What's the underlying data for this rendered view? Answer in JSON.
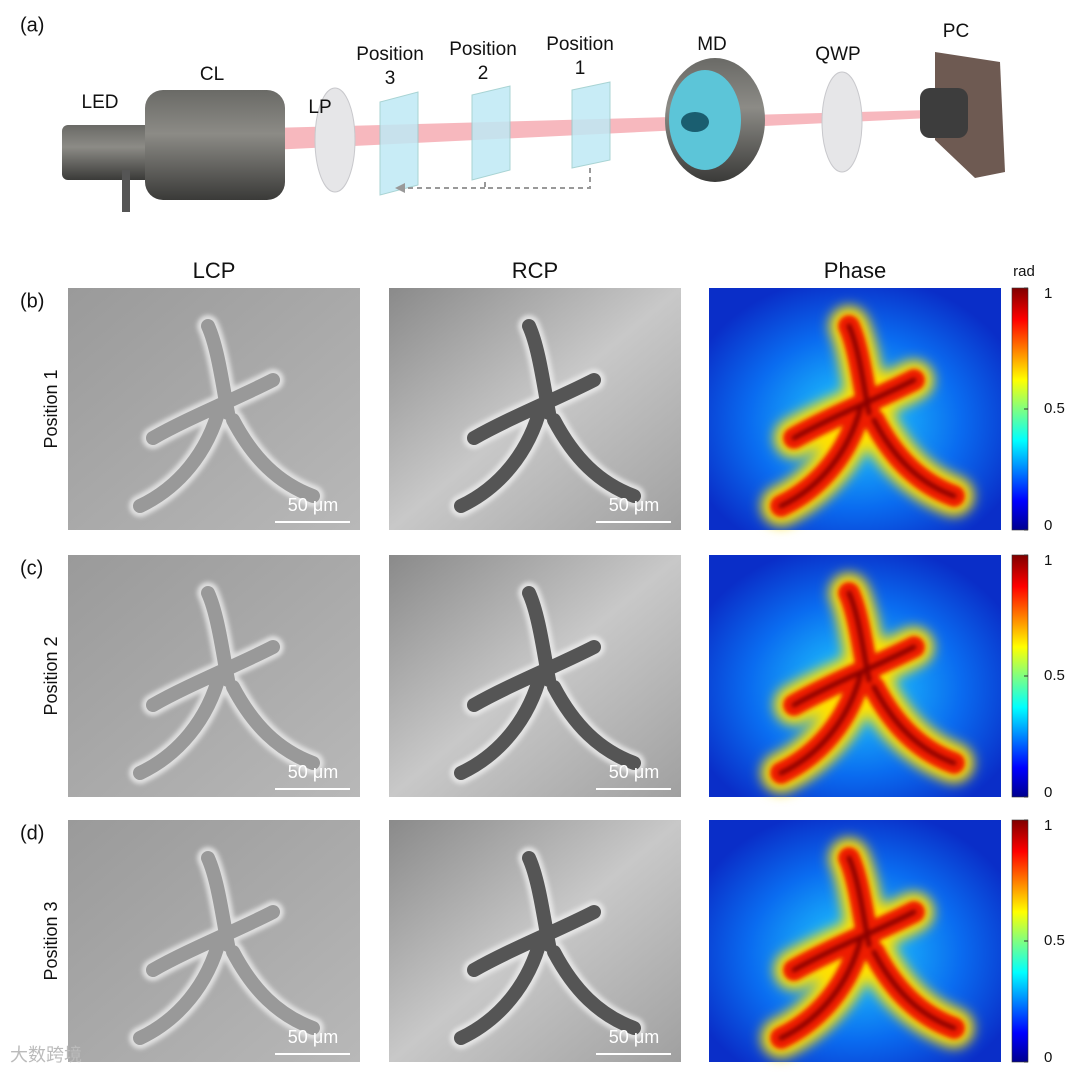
{
  "panel_a": {
    "label": "(a)",
    "components": [
      {
        "lines": [
          "LED"
        ]
      },
      {
        "lines": [
          "CL"
        ]
      },
      {
        "lines": [
          "LP"
        ]
      },
      {
        "lines": [
          "Position",
          "3"
        ]
      },
      {
        "lines": [
          "Position",
          "2"
        ]
      },
      {
        "lines": [
          "Position",
          "1"
        ]
      },
      {
        "lines": [
          "MD"
        ]
      },
      {
        "lines": [
          "QWP"
        ]
      },
      {
        "lines": [
          "PC"
        ]
      }
    ]
  },
  "columns": [
    "LCP",
    "RCP",
    "Phase"
  ],
  "rows": [
    {
      "label": "(b)",
      "position": "Position 1"
    },
    {
      "label": "(c)",
      "position": "Position 2"
    },
    {
      "label": "(d)",
      "position": "Position 3"
    }
  ],
  "scale_bar": "50 μm",
  "colorbar": {
    "unit": "rad",
    "clim": [
      0,
      1
    ],
    "ticks": [
      0,
      0.5,
      1
    ]
  },
  "watermark": "大数跨境"
}
